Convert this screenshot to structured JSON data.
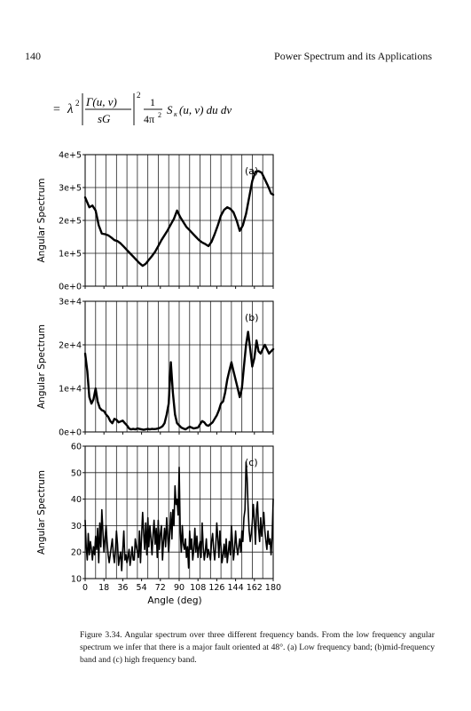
{
  "header": {
    "page_number": "140",
    "running_title": "Power Spectrum and its Applications"
  },
  "equation": {
    "equals": "=",
    "lambda": "λ",
    "sq": "2",
    "numerator": "Γ(u, v)",
    "denominator": "sG",
    "power": "2",
    "one": "1",
    "fourpi": "4π",
    "fourpi_sq": "2",
    "tail": "S",
    "tail_sub": "κ",
    "tail_rest": "(u, v) du dv"
  },
  "figure": {
    "x_label": "Angle (deg)",
    "x_ticks": [
      "0",
      "18",
      "36",
      "54",
      "72",
      "90",
      "108",
      "126",
      "144",
      "162",
      "180"
    ]
  },
  "chart_data": [
    {
      "type": "line",
      "panel_label": "(a)",
      "ylabel": "Angular Spectrum",
      "xlim": [
        0,
        180
      ],
      "ylim": [
        0,
        400000
      ],
      "y_ticks": [
        "0e+0",
        "1e+5",
        "2e+5",
        "3e+5",
        "4e+5"
      ],
      "grid": true,
      "x": [
        0,
        4,
        7,
        10,
        13,
        16,
        19,
        22,
        25,
        28,
        31,
        34,
        37,
        40,
        43,
        46,
        49,
        52,
        55,
        58,
        61,
        64,
        67,
        70,
        73,
        76,
        79,
        82,
        85,
        88,
        91,
        94,
        97,
        100,
        103,
        106,
        109,
        112,
        115,
        118,
        121,
        124,
        127,
        130,
        133,
        136,
        139,
        142,
        145,
        148,
        151,
        154,
        157,
        160,
        163,
        166,
        169,
        172,
        175,
        178,
        180
      ],
      "y": [
        270000,
        240000,
        245000,
        230000,
        185000,
        160000,
        158000,
        155000,
        148000,
        140000,
        137000,
        130000,
        120000,
        110000,
        100000,
        90000,
        80000,
        70000,
        62000,
        68000,
        80000,
        92000,
        105000,
        122000,
        140000,
        155000,
        170000,
        188000,
        205000,
        230000,
        210000,
        195000,
        180000,
        170000,
        160000,
        150000,
        140000,
        133000,
        128000,
        122000,
        135000,
        158000,
        185000,
        215000,
        232000,
        240000,
        235000,
        225000,
        200000,
        168000,
        185000,
        220000,
        270000,
        320000,
        348000,
        350000,
        345000,
        325000,
        305000,
        282000,
        278000
      ]
    },
    {
      "type": "line",
      "panel_label": "(b)",
      "ylabel": "Angular Spectrum",
      "xlim": [
        0,
        180
      ],
      "ylim": [
        0,
        30000
      ],
      "y_ticks": [
        "0e+0",
        "1e+4",
        "2e+4",
        "3e+4"
      ],
      "grid": true,
      "x": [
        0,
        2,
        4,
        6,
        8,
        10,
        12,
        14,
        16,
        18,
        20,
        22,
        24,
        26,
        28,
        30,
        32,
        34,
        36,
        38,
        40,
        42,
        44,
        46,
        48,
        50,
        52,
        54,
        56,
        58,
        60,
        62,
        64,
        66,
        68,
        70,
        72,
        74,
        76,
        78,
        80,
        82,
        84,
        86,
        88,
        90,
        92,
        94,
        96,
        98,
        100,
        102,
        104,
        106,
        108,
        110,
        112,
        114,
        116,
        118,
        120,
        122,
        124,
        126,
        128,
        130,
        132,
        134,
        136,
        138,
        140,
        142,
        144,
        146,
        148,
        150,
        152,
        154,
        156,
        158,
        160,
        162,
        164,
        166,
        168,
        170,
        172,
        174,
        176,
        178,
        180
      ],
      "y": [
        18000,
        14000,
        8000,
        6500,
        7500,
        10000,
        7000,
        5500,
        5000,
        4800,
        4000,
        3500,
        2500,
        2000,
        3000,
        2800,
        2200,
        2400,
        2600,
        2000,
        1500,
        800,
        600,
        700,
        600,
        800,
        700,
        600,
        500,
        600,
        700,
        600,
        700,
        650,
        700,
        800,
        1000,
        1300,
        2000,
        4000,
        6500,
        16000,
        9000,
        4000,
        2000,
        1500,
        1000,
        800,
        600,
        900,
        1200,
        1000,
        800,
        900,
        1000,
        1800,
        2500,
        2200,
        1600,
        1400,
        1800,
        2200,
        3000,
        3800,
        5000,
        6500,
        7000,
        9000,
        12000,
        14000,
        16000,
        14000,
        12000,
        10000,
        8000,
        10000,
        15000,
        20000,
        23000,
        19000,
        15000,
        17000,
        21000,
        18500,
        18000,
        19000,
        20000,
        19000,
        18000,
        18500,
        19000
      ]
    },
    {
      "type": "line",
      "panel_label": "(c)",
      "ylabel": "Angular Spectrum",
      "xlim": [
        0,
        180
      ],
      "ylim": [
        10,
        60
      ],
      "y_ticks": [
        "10",
        "20",
        "30",
        "40",
        "50",
        "60"
      ],
      "grid": true,
      "x": [
        0,
        1,
        2,
        3,
        4,
        5,
        6,
        7,
        8,
        9,
        10,
        11,
        12,
        13,
        14,
        15,
        16,
        17,
        18,
        19,
        20,
        21,
        22,
        23,
        24,
        25,
        26,
        27,
        28,
        29,
        30,
        31,
        32,
        33,
        34,
        35,
        36,
        37,
        38,
        39,
        40,
        41,
        42,
        43,
        44,
        45,
        46,
        47,
        48,
        49,
        50,
        51,
        52,
        53,
        54,
        55,
        56,
        57,
        58,
        59,
        60,
        61,
        62,
        63,
        64,
        65,
        66,
        67,
        68,
        69,
        70,
        71,
        72,
        73,
        74,
        75,
        76,
        77,
        78,
        79,
        80,
        81,
        82,
        83,
        84,
        85,
        86,
        87,
        88,
        89,
        90,
        91,
        92,
        93,
        94,
        95,
        96,
        97,
        98,
        99,
        100,
        101,
        102,
        103,
        104,
        105,
        106,
        107,
        108,
        109,
        110,
        111,
        112,
        113,
        114,
        115,
        116,
        117,
        118,
        119,
        120,
        121,
        122,
        123,
        124,
        125,
        126,
        127,
        128,
        129,
        130,
        131,
        132,
        133,
        134,
        135,
        136,
        137,
        138,
        139,
        140,
        141,
        142,
        143,
        144,
        145,
        146,
        147,
        148,
        149,
        150,
        151,
        152,
        153,
        154,
        155,
        156,
        157,
        158,
        159,
        160,
        161,
        162,
        163,
        164,
        165,
        166,
        167,
        168,
        169,
        170,
        171,
        172,
        173,
        174,
        175,
        176,
        177,
        178,
        179,
        180
      ],
      "y": [
        32,
        22,
        17,
        27,
        19,
        24,
        21,
        17,
        22,
        19,
        26,
        21,
        29,
        16,
        31,
        22,
        36,
        28,
        20,
        25,
        30,
        24,
        19,
        16,
        19,
        22,
        25,
        19,
        16,
        21,
        28,
        23,
        15,
        18,
        20,
        13,
        21,
        28,
        17,
        19,
        16,
        18,
        21,
        15,
        18,
        22,
        17,
        17,
        25,
        22,
        20,
        18,
        28,
        16,
        26,
        35,
        27,
        21,
        31,
        19,
        33,
        22,
        30,
        25,
        19,
        27,
        32,
        23,
        29,
        18,
        32,
        21,
        27,
        30,
        17,
        24,
        29,
        22,
        33,
        26,
        20,
        27,
        35,
        25,
        36,
        30,
        45,
        38,
        40,
        34,
        52,
        28,
        20,
        30,
        23,
        21,
        25,
        18,
        22,
        14,
        28,
        21,
        25,
        17,
        21,
        29,
        20,
        26,
        18,
        22,
        24,
        18,
        31,
        22,
        17,
        20,
        25,
        18,
        21,
        19,
        17,
        24,
        27,
        21,
        17,
        22,
        31,
        25,
        18,
        28,
        22,
        16,
        19,
        23,
        18,
        25,
        16,
        20,
        24,
        19,
        30,
        24,
        17,
        21,
        28,
        22,
        19,
        22,
        25,
        20,
        28,
        24,
        33,
        36,
        54,
        48,
        37,
        28,
        24,
        27,
        31,
        38,
        32,
        23,
        36,
        39,
        29,
        24,
        33,
        26,
        30,
        35,
        28,
        24,
        21,
        28,
        23,
        25,
        19,
        26,
        40
      ]
    }
  ],
  "caption": {
    "text": "Figure 3.34. Angular spectrum over three different frequency bands. From the low frequency angular spectrum we infer that there is a major fault oriented at 48°. (a) Low frequency band; (b)mid-frequency band and (c) high frequency band."
  }
}
